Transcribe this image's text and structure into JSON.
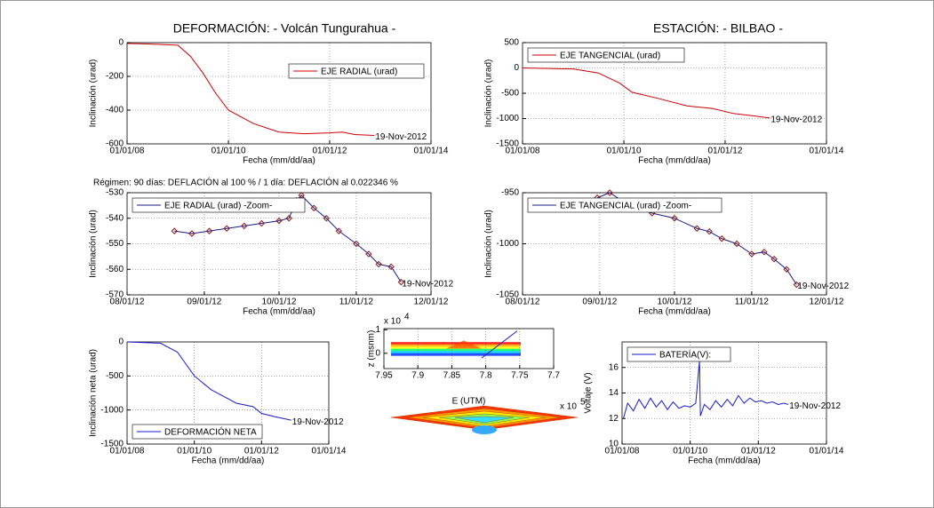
{
  "figure": {
    "title_left": "DEFORMACIÓN: - Volcán Tungurahua -",
    "title_right": "ESTACIÓN: - BILBAO -",
    "note": "Régimen: 90 días: DEFLACIÓN al 100 % / 1 día: DEFLACIÓN al 0.022346 %"
  },
  "chart_data": [
    {
      "type": "line",
      "xlabel": "Fecha (mm/dd/aa)",
      "ylabel": "Inclinación (urad)",
      "grid": true,
      "legend": "upper right",
      "annotation": "19-Nov-2012",
      "xlim": [
        "2008-01-01",
        "2014-01-01"
      ],
      "xticks": [
        {
          "value": "2008-01-01",
          "label": "01/01/08"
        },
        {
          "value": "2010-01-01",
          "label": "01/01/10"
        },
        {
          "value": "2012-01-01",
          "label": "01/01/12"
        },
        {
          "value": "2014-01-01",
          "label": "01/01/14"
        }
      ],
      "ylim": [
        -600,
        0
      ],
      "yticks": [
        0,
        -200,
        -400,
        -600
      ],
      "x": [
        "2008-01-01",
        "2008-06-01",
        "2009-01-01",
        "2009-04-01",
        "2009-07-01",
        "2009-10-01",
        "2010-01-01",
        "2010-04-01",
        "2010-07-01",
        "2011-01-01",
        "2011-07-01",
        "2012-01-01",
        "2012-04-01",
        "2012-07-01",
        "2012-11-19"
      ],
      "series": [
        {
          "name": "EJE RADIAL (urad)",
          "color": "#cc0000",
          "values": [
            -5,
            -8,
            -15,
            -80,
            -180,
            -300,
            -400,
            -440,
            -480,
            -530,
            -540,
            -535,
            -530,
            -545,
            -550
          ]
        }
      ]
    },
    {
      "type": "line",
      "xlabel": "Fecha (mm/dd/aa)",
      "ylabel": "Inclinación (urad)",
      "grid": true,
      "legend": "upper left",
      "annotation": "19-Nov-2012",
      "xlim": [
        "2008-01-01",
        "2014-01-01"
      ],
      "xticks": [
        {
          "value": "2008-01-01",
          "label": "01/01/08"
        },
        {
          "value": "2010-01-01",
          "label": "01/01/10"
        },
        {
          "value": "2012-01-01",
          "label": "01/01/12"
        },
        {
          "value": "2014-01-01",
          "label": "01/01/14"
        }
      ],
      "ylim": [
        -1500,
        500
      ],
      "yticks": [
        500,
        0,
        -500,
        -1000,
        -1500
      ],
      "x": [
        "2008-01-01",
        "2009-01-01",
        "2009-07-01",
        "2009-12-01",
        "2010-03-01",
        "2010-09-01",
        "2011-04-01",
        "2011-10-01",
        "2012-03-01",
        "2012-08-01",
        "2012-11-19"
      ],
      "series": [
        {
          "name": "EJE TANGENCIAL (urad)",
          "color": "#cc0000",
          "values": [
            0,
            -20,
            -100,
            -300,
            -480,
            -600,
            -750,
            -800,
            -900,
            -950,
            -990
          ]
        }
      ]
    },
    {
      "type": "line",
      "xlabel": "Fecha (mm/dd/aa)",
      "ylabel": "Inclinación (urad)",
      "grid": true,
      "legend": "upper left",
      "annotation": "19-Nov-2012",
      "xlim": [
        "2012-08-01",
        "2012-12-01"
      ],
      "xticks": [
        {
          "value": "2012-08-01",
          "label": "08/01/12"
        },
        {
          "value": "2012-09-01",
          "label": "09/01/12"
        },
        {
          "value": "2012-10-01",
          "label": "10/01/12"
        },
        {
          "value": "2012-11-01",
          "label": "11/01/12"
        },
        {
          "value": "2012-12-01",
          "label": "12/01/12"
        }
      ],
      "ylim": [
        -570,
        -530
      ],
      "yticks": [
        -530,
        -540,
        -550,
        -560,
        -570
      ],
      "x": [
        "2012-08-20",
        "2012-08-27",
        "2012-09-03",
        "2012-09-10",
        "2012-09-17",
        "2012-09-24",
        "2012-10-01",
        "2012-10-05",
        "2012-10-08",
        "2012-10-10",
        "2012-10-15",
        "2012-10-20",
        "2012-10-25",
        "2012-11-01",
        "2012-11-06",
        "2012-11-10",
        "2012-11-15",
        "2012-11-19"
      ],
      "series": [
        {
          "name": "EJE RADIAL (urad) -Zoom-",
          "color": "#1a1a8c",
          "marker": "diamond",
          "marker_color": "#8b1a1a",
          "values": [
            -545,
            -546,
            -545,
            -544,
            -543,
            -542,
            -541,
            -540,
            -533,
            -531,
            -536,
            -540,
            -545,
            -550,
            -554,
            -558,
            -559,
            -565
          ]
        }
      ]
    },
    {
      "type": "line",
      "xlabel": "Fecha (mm/dd/aa)",
      "ylabel": "Inclinación (urad)",
      "grid": true,
      "legend": "upper left",
      "annotation": "19-Nov-2012",
      "xlim": [
        "2012-08-01",
        "2012-12-01"
      ],
      "xticks": [
        {
          "value": "2012-08-01",
          "label": "08/01/12"
        },
        {
          "value": "2012-09-01",
          "label": "09/01/12"
        },
        {
          "value": "2012-10-01",
          "label": "10/01/12"
        },
        {
          "value": "2012-11-01",
          "label": "11/01/12"
        },
        {
          "value": "2012-12-01",
          "label": "12/01/12"
        }
      ],
      "ylim": [
        -1050,
        -950
      ],
      "yticks": [
        -950,
        -1000,
        -1050
      ],
      "x": [
        "2012-08-31",
        "2012-09-05",
        "2012-09-10",
        "2012-09-15",
        "2012-09-22",
        "2012-10-01",
        "2012-10-10",
        "2012-10-15",
        "2012-10-20",
        "2012-10-26",
        "2012-11-01",
        "2012-11-06",
        "2012-11-10",
        "2012-11-15",
        "2012-11-19"
      ],
      "series": [
        {
          "name": "EJE TANGENCIAL (urad) -Zoom-",
          "color": "#1a1a8c",
          "marker": "diamond",
          "marker_color": "#8b1a1a",
          "values": [
            -955,
            -950,
            -958,
            -965,
            -970,
            -975,
            -985,
            -988,
            -995,
            -1000,
            -1010,
            -1008,
            -1015,
            -1025,
            -1040
          ]
        }
      ]
    },
    {
      "type": "line",
      "xlabel": "Fecha (mm/dd/aa)",
      "ylabel": "Inclinación neta (urad)",
      "grid": true,
      "legend": "lower left",
      "annotation": "19-Nov-2012",
      "xlim": [
        "2008-01-01",
        "2014-01-01"
      ],
      "xticks": [
        {
          "value": "2008-01-01",
          "label": "01/01/08"
        },
        {
          "value": "2010-01-01",
          "label": "01/01/10"
        },
        {
          "value": "2012-01-01",
          "label": "01/01/12"
        },
        {
          "value": "2014-01-01",
          "label": "01/01/14"
        }
      ],
      "ylim": [
        -1500,
        0
      ],
      "yticks": [
        0,
        -500,
        -1000,
        -1500
      ],
      "x": [
        "2008-01-01",
        "2009-01-01",
        "2009-07-01",
        "2010-01-01",
        "2010-07-01",
        "2011-04-01",
        "2011-10-01",
        "2012-01-01",
        "2012-06-01",
        "2012-11-19"
      ],
      "series": [
        {
          "name": "DEFORMACIÓN NETA",
          "color": "#1a1acc",
          "values": [
            0,
            -20,
            -150,
            -500,
            -700,
            -900,
            -950,
            -1050,
            -1100,
            -1150
          ]
        }
      ]
    },
    {
      "type": "line",
      "xlabel": "Fecha (mm/dd/aa)",
      "ylabel": "Voltaje (V)",
      "grid": true,
      "legend": "upper left",
      "annotation": "19-Nov-2012",
      "xlim": [
        "2008-01-01",
        "2014-01-01"
      ],
      "xticks": [
        {
          "value": "2008-01-01",
          "label": "01/01/08"
        },
        {
          "value": "2010-01-01",
          "label": "01/01/10"
        },
        {
          "value": "2012-01-01",
          "label": "01/01/12"
        },
        {
          "value": "2014-01-01",
          "label": "01/01/14"
        }
      ],
      "ylim": [
        10,
        18
      ],
      "yticks": [
        10,
        12,
        14,
        16
      ],
      "x": [
        "2008-01-15",
        "2008-03-01",
        "2008-05-01",
        "2008-07-01",
        "2008-09-01",
        "2008-11-01",
        "2009-01-01",
        "2009-03-01",
        "2009-05-01",
        "2009-07-01",
        "2009-09-01",
        "2009-11-01",
        "2010-01-01",
        "2010-03-01",
        "2010-04-10",
        "2010-04-20",
        "2010-06-01",
        "2010-08-01",
        "2010-10-01",
        "2010-12-01",
        "2011-02-01",
        "2011-04-01",
        "2011-06-01",
        "2011-08-01",
        "2011-10-01",
        "2011-12-01",
        "2012-02-01",
        "2012-04-01",
        "2012-06-01",
        "2012-08-01",
        "2012-10-01",
        "2012-11-19"
      ],
      "series": [
        {
          "name": "BATERÍA(V):",
          "color": "#1a1acc",
          "values": [
            12.0,
            13.2,
            12.6,
            13.5,
            12.8,
            13.6,
            12.9,
            13.4,
            12.7,
            13.3,
            12.8,
            13.0,
            12.9,
            13.2,
            16.5,
            12.2,
            13.1,
            12.7,
            13.4,
            12.9,
            13.5,
            13.0,
            13.8,
            13.2,
            13.6,
            13.3,
            13.4,
            13.2,
            13.3,
            13.1,
            13.2,
            13.1
          ]
        }
      ]
    },
    {
      "type": "surface3d",
      "xlabel": "E (UTM)",
      "ylabel": "z (msnm)",
      "grid": true,
      "xlim": [
        7.95,
        7.7
      ],
      "xticks": [
        7.95,
        7.9,
        7.85,
        7.8,
        7.75,
        7.7
      ],
      "x_multiplier": "x 10",
      "x_exponent": "5",
      "ylim": [
        -0.65,
        1.05
      ],
      "yticks": [
        0,
        1
      ],
      "y_multiplier": "x 10",
      "y_exponent": "4"
    }
  ]
}
